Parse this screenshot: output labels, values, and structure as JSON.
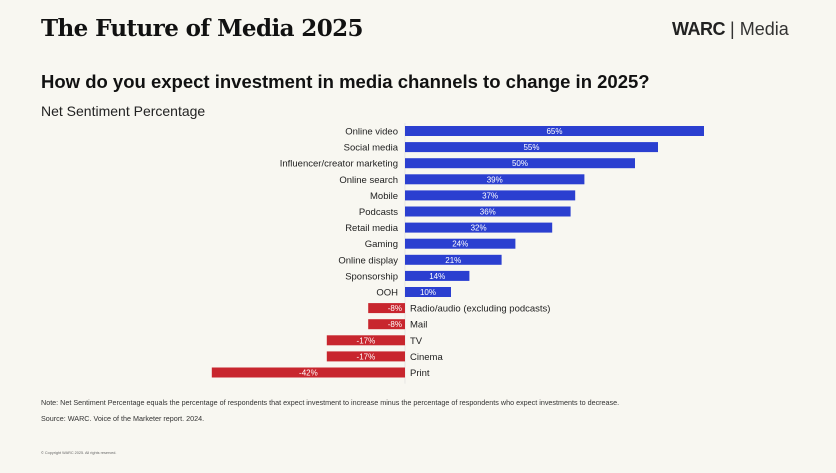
{
  "header": {
    "title": "The Future of Media 2025",
    "brand_name": "WARC",
    "brand_separator": "|",
    "brand_section": "Media"
  },
  "chart_data": {
    "type": "bar",
    "orientation": "horizontal",
    "title": "How do you expect investment in media channels to change in 2025?",
    "subtitle": "Net Sentiment Percentage",
    "xlabel": "",
    "ylabel": "",
    "unit": "%",
    "grid": false,
    "categories": [
      "Online video",
      "Social media",
      "Influencer/creator marketing",
      "Online search",
      "Mobile",
      "Podcasts",
      "Retail media",
      "Gaming",
      "Online display",
      "Sponsorship",
      "OOH",
      "Radio/audio (excluding podcasts)",
      "Mail",
      "TV",
      "Cinema",
      "Print"
    ],
    "values": [
      65,
      55,
      50,
      39,
      37,
      36,
      32,
      24,
      21,
      14,
      10,
      -8,
      -8,
      -17,
      -17,
      -42
    ],
    "data_labels": [
      "65%",
      "55%",
      "50%",
      "39%",
      "37%",
      "36%",
      "32%",
      "24%",
      "21%",
      "14%",
      "10%",
      "-8%",
      "-8%",
      "-17%",
      "-17%",
      "-42%"
    ],
    "colors": {
      "positive": "#2b3fd0",
      "negative": "#c8262e"
    },
    "xlim": [
      -42,
      65
    ]
  },
  "footer": {
    "note": "Note: Net Sentiment Percentage equals the percentage of respondents that expect investment to increase minus the percentage of respondents who expect investments to decrease.",
    "source": "Source: WARC. Voice of the Marketer report. 2024.",
    "copyright": "© Copyright WARC 2025. All rights reserved."
  }
}
